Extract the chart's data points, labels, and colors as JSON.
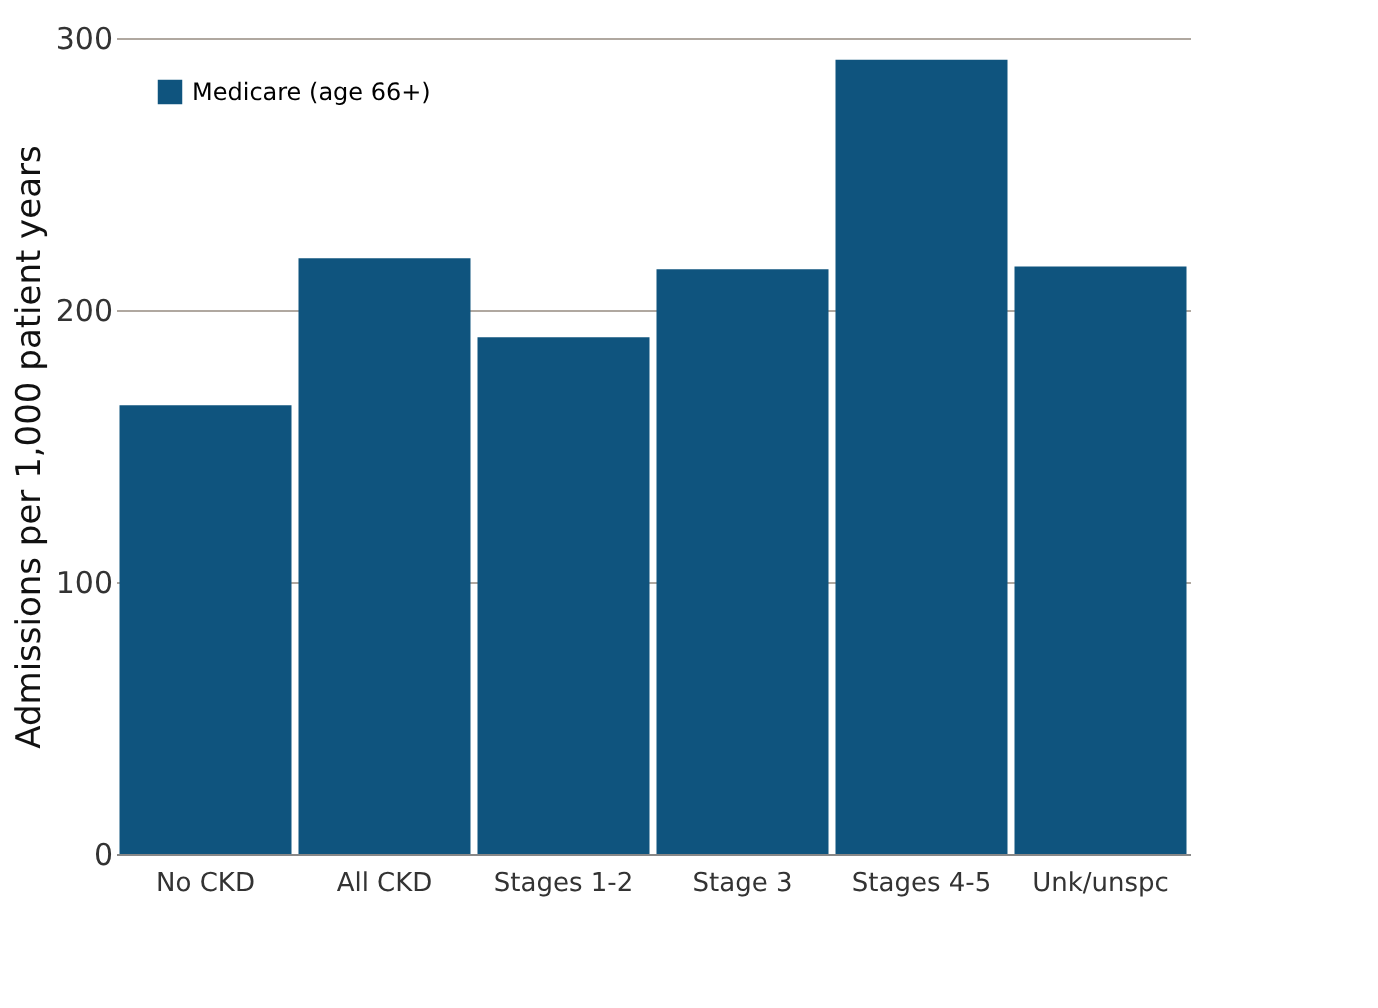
{
  "chart_data": {
    "type": "bar",
    "ylabel": "Admissions per 1,000 patient years",
    "categories": [
      "No CKD",
      "All CKD",
      "Stages 1-2",
      "Stage 3",
      "Stages 4-5",
      "Unk/unspc"
    ],
    "series": [
      {
        "name": "Medicare (age 66+)",
        "color": "#0f547e",
        "values": [
          165,
          219,
          190,
          215,
          292,
          216
        ]
      }
    ],
    "ylim": [
      0,
      300
    ],
    "yticks": [
      0,
      100,
      200,
      300
    ],
    "grid": "y",
    "legend": "top left"
  }
}
